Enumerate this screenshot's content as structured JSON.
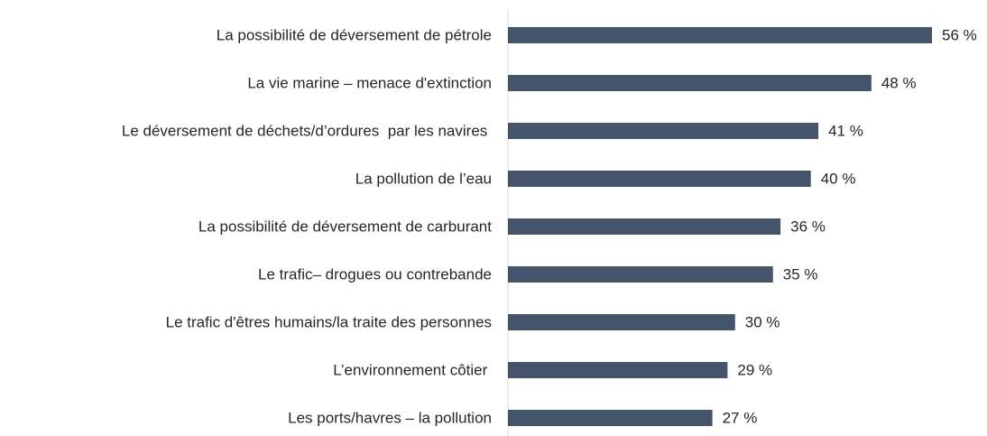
{
  "chart_data": {
    "type": "hbar",
    "categories": [
      "La possibilité de déversement de pétrole",
      "La vie marine – menace d'extinction",
      "Le déversement de déchets/d’ordures  par les navires ",
      "La pollution de l’eau",
      "La possibilité de déversement de carburant",
      "Le trafic– drogues ou contrebande",
      "Le trafic d'êtres humains/la traite des personnes",
      "L’environnement côtier ",
      "Les ports/havres – la pollution"
    ],
    "values": [
      56,
      48,
      41,
      40,
      36,
      35,
      30,
      29,
      27
    ],
    "value_labels": [
      "56 %",
      "48 %",
      "41 %",
      "40 %",
      "36 %",
      "35 %",
      "30 %",
      "29 %",
      "27 %"
    ],
    "color": "#44546a"
  }
}
